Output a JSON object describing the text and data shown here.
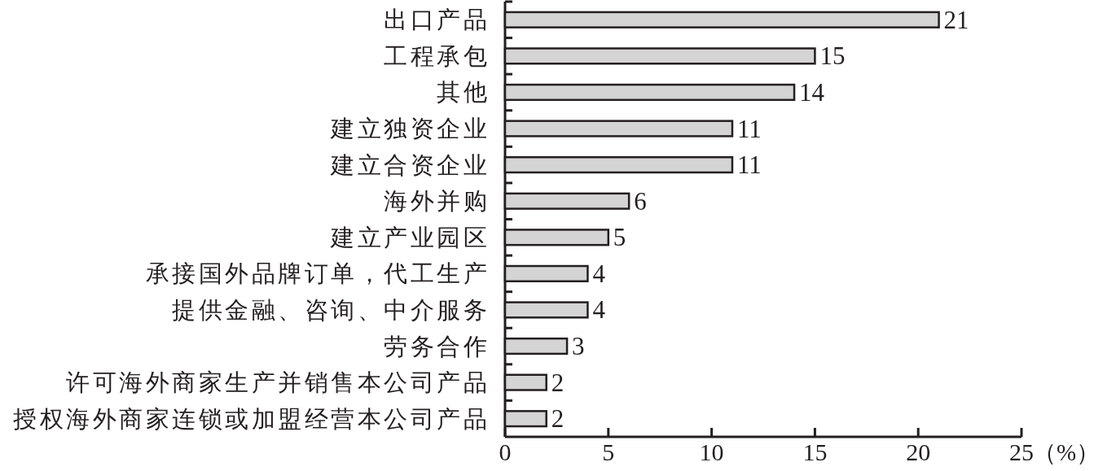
{
  "chart_data": {
    "type": "bar",
    "orientation": "horizontal",
    "categories": [
      "出口产品",
      "工程承包",
      "其他",
      "建立独资企业",
      "建立合资企业",
      "海外并购",
      "建立产业园区",
      "承接国外品牌订单，代工生产",
      "提供金融、咨询、中介服务",
      "劳务合作",
      "许可海外商家生产并销售本公司产品",
      "授权海外商家连锁或加盟经营本公司产品"
    ],
    "values": [
      21,
      15,
      14,
      11,
      11,
      6,
      5,
      4,
      4,
      3,
      2,
      2
    ],
    "color": "#d4d4d4",
    "xlim": [
      0,
      25
    ],
    "xticks": [
      0,
      5,
      10,
      15,
      20,
      25
    ],
    "xlabel": "（%）",
    "data_labels": true
  }
}
